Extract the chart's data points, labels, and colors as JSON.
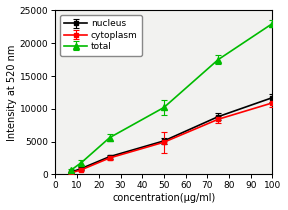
{
  "x": [
    7,
    12,
    25,
    50,
    75,
    100
  ],
  "nucleus_y": [
    300,
    900,
    2700,
    5100,
    8800,
    11700
  ],
  "nucleus_err": [
    100,
    200,
    300,
    400,
    500,
    600
  ],
  "cytoplasm_y": [
    200,
    700,
    2500,
    4900,
    8400,
    10900
  ],
  "cytoplasm_err": [
    100,
    150,
    250,
    1600,
    500,
    700
  ],
  "total_y": [
    600,
    1800,
    5600,
    10200,
    17500,
    23000
  ],
  "total_err": [
    200,
    400,
    500,
    1200,
    700,
    500
  ],
  "nucleus_color": "#000000",
  "cytoplasm_color": "#ff0000",
  "total_color": "#00bb00",
  "xlabel": "concentration(μg/ml)",
  "ylabel": "Intensity at 520 nm",
  "xlim": [
    0,
    100
  ],
  "ylim": [
    0,
    25000
  ],
  "xticks": [
    0,
    10,
    20,
    30,
    40,
    50,
    60,
    70,
    80,
    90,
    100
  ],
  "yticks": [
    0,
    5000,
    10000,
    15000,
    20000,
    25000
  ],
  "legend_labels": [
    "nucleus",
    "cytoplasm",
    "total"
  ],
  "plot_bg": "#f2f2f0",
  "fig_bg": "#ffffff"
}
